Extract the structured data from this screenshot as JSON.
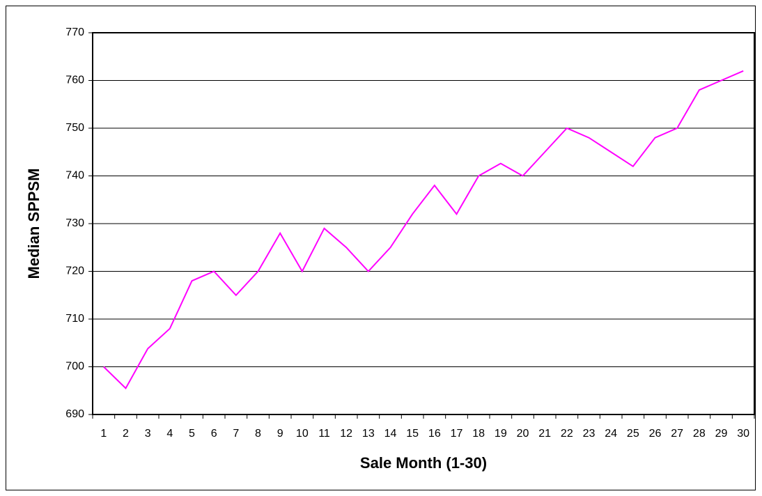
{
  "chart_data": {
    "type": "line",
    "xlabel": "Sale Month (1-30)",
    "ylabel": "Median SPPSM",
    "categories": [
      "1",
      "2",
      "3",
      "4",
      "5",
      "6",
      "7",
      "8",
      "9",
      "10",
      "11",
      "12",
      "13",
      "14",
      "15",
      "16",
      "17",
      "18",
      "19",
      "20",
      "21",
      "22",
      "23",
      "24",
      "25",
      "26",
      "27",
      "28",
      "29",
      "30"
    ],
    "series": [
      {
        "color": "#ff00ff",
        "values": [
          700,
          695.5,
          703.8,
          708,
          718,
          720,
          715,
          720,
          728,
          720,
          729,
          725,
          720,
          725,
          732,
          738,
          732,
          740,
          742.6,
          740,
          745,
          750,
          748,
          745,
          742,
          748,
          750,
          758,
          760,
          762
        ]
      }
    ],
    "ylim": [
      690,
      770
    ],
    "yticks": [
      690,
      700,
      710,
      720,
      730,
      740,
      750,
      760,
      770
    ],
    "grid": true
  }
}
